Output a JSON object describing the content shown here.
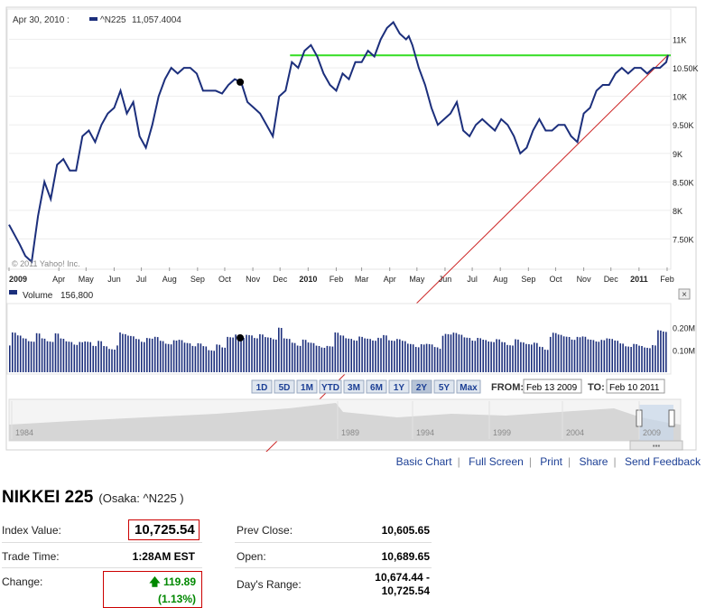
{
  "tooltip": {
    "date": "Apr 30, 2010 :",
    "symbol": "^N225",
    "value": "11,057.4004"
  },
  "watermark": "© 2011 Yahoo! Inc.",
  "volume_label": "Volume",
  "volume_value": "156,800",
  "close_icon": "close-icon",
  "range_buttons": [
    "1D",
    "5D",
    "1M",
    "YTD",
    "3M",
    "6M",
    "1Y",
    "2Y",
    "5Y",
    "Max"
  ],
  "range_selected": "2Y",
  "from_label": "FROM:",
  "from_value": "Feb 13 2009",
  "to_label": "TO:",
  "to_value": "Feb 10 2011",
  "navigator_years": [
    "1984",
    "1989",
    "1994",
    "1999",
    "2004",
    "2009"
  ],
  "links": [
    "Basic Chart",
    "Full Screen",
    "Print",
    "Share",
    "Send Feedback"
  ],
  "title": "NIKKEI 225",
  "subtitle": "(Osaka: ^N225 )",
  "stats": {
    "index_value_label": "Index Value:",
    "index_value": "10,725.54",
    "trade_time_label": "Trade Time:",
    "trade_time": "1:28AM EST",
    "change_label": "Change:",
    "change": "119.89 (1.13%)",
    "prev_close_label": "Prev Close:",
    "prev_close": "10,605.65",
    "open_label": "Open:",
    "open": "10,689.65",
    "days_range_label": "Day's Range:",
    "days_range_1": "10,674.44 -",
    "days_range_2": "10,725.54"
  },
  "colors": {
    "price": "#1c2f7c",
    "volume": "#1c2f7c",
    "support_line": "#33dd22",
    "trend_line": "#cc2222",
    "change_up": "#008800"
  },
  "chart_data": {
    "type": "line",
    "x_tick_labels": [
      "2009",
      "Apr",
      "May",
      "Jun",
      "Jul",
      "Aug",
      "Sep",
      "Oct",
      "Nov",
      "Dec",
      "2010",
      "Feb",
      "Mar",
      "Apr",
      "May",
      "Jun",
      "Jul",
      "Aug",
      "Sep",
      "Oct",
      "Nov",
      "Dec",
      "2011",
      "Feb"
    ],
    "y_tick_labels": [
      "11K",
      "10.50K",
      "10K",
      "9.50K",
      "9K",
      "8.50K",
      "8K",
      "7.50K"
    ],
    "y_ticks": [
      11000,
      10500,
      10000,
      9500,
      9000,
      8500,
      8000,
      7500
    ],
    "ylim": [
      7000,
      11500
    ],
    "series": [
      {
        "x": [
          "2009-02-13",
          "2009-02-25",
          "2009-03-03",
          "2009-03-10",
          "2009-03-17",
          "2009-03-24",
          "2009-03-31",
          "2009-04-07",
          "2009-04-14",
          "2009-04-21",
          "2009-04-28",
          "2009-05-05",
          "2009-05-12",
          "2009-05-19",
          "2009-05-26",
          "2009-06-02",
          "2009-06-09",
          "2009-06-16",
          "2009-06-23",
          "2009-06-30",
          "2009-07-07",
          "2009-07-14",
          "2009-07-21",
          "2009-07-28",
          "2009-08-04",
          "2009-08-11",
          "2009-08-18",
          "2009-08-25",
          "2009-09-01",
          "2009-09-08",
          "2009-09-15",
          "2009-09-22",
          "2009-09-29",
          "2009-10-06",
          "2009-10-13",
          "2009-10-20",
          "2009-10-27",
          "2009-11-03",
          "2009-11-10",
          "2009-11-17",
          "2009-11-24",
          "2009-12-01",
          "2009-12-08",
          "2009-12-15",
          "2009-12-22",
          "2009-12-29",
          "2010-01-05",
          "2010-01-12",
          "2010-01-19",
          "2010-01-26",
          "2010-02-02",
          "2010-02-09",
          "2010-02-16",
          "2010-02-23",
          "2010-03-02",
          "2010-03-09",
          "2010-03-16",
          "2010-03-23",
          "2010-03-30",
          "2010-04-06",
          "2010-04-13",
          "2010-04-20",
          "2010-04-27",
          "2010-04-30",
          "2010-05-04",
          "2010-05-11",
          "2010-05-18",
          "2010-05-25",
          "2010-06-01",
          "2010-06-08",
          "2010-06-15",
          "2010-06-22",
          "2010-06-29",
          "2010-07-06",
          "2010-07-13",
          "2010-07-20",
          "2010-07-27",
          "2010-08-03",
          "2010-08-10",
          "2010-08-17",
          "2010-08-24",
          "2010-08-31",
          "2010-09-07",
          "2010-09-14",
          "2010-09-21",
          "2010-09-28",
          "2010-10-05",
          "2010-10-12",
          "2010-10-19",
          "2010-10-26",
          "2010-11-02",
          "2010-11-09",
          "2010-11-16",
          "2010-11-23",
          "2010-11-30",
          "2010-12-07",
          "2010-12-14",
          "2010-12-21",
          "2010-12-28",
          "2011-01-04",
          "2011-01-11",
          "2011-01-18",
          "2011-01-25",
          "2011-02-01",
          "2011-02-08",
          "2011-02-10"
        ],
        "y": [
          7750,
          7400,
          7200,
          7100,
          7900,
          8500,
          8200,
          8800,
          8900,
          8700,
          8700,
          9300,
          9400,
          9200,
          9500,
          9700,
          9800,
          10100,
          9700,
          9900,
          9300,
          9100,
          9500,
          10000,
          10300,
          10500,
          10400,
          10500,
          10500,
          10400,
          10100,
          10100,
          10100,
          10050,
          10200,
          10300,
          10250,
          9900,
          9800,
          9700,
          9500,
          9300,
          10000,
          10100,
          10600,
          10500,
          10800,
          10900,
          10700,
          10400,
          10200,
          10100,
          10400,
          10300,
          10600,
          10600,
          10800,
          10700,
          11000,
          11200,
          11300,
          11100,
          11000,
          11057,
          10900,
          10500,
          10200,
          9800,
          9500,
          9600,
          9700,
          9900,
          9400,
          9300,
          9500,
          9600,
          9500,
          9400,
          9600,
          9500,
          9300,
          9000,
          9100,
          9400,
          9600,
          9400,
          9400,
          9500,
          9500,
          9300,
          9200,
          9700,
          9800,
          10100,
          10200,
          10200,
          10400,
          10500,
          10400,
          10500,
          10500,
          10400,
          10500,
          10500,
          10600,
          10725
        ],
        "annotation": {
          "date": "2009-10-26",
          "value": 10250
        }
      }
    ],
    "support_level": 10720,
    "volume": {
      "y_tick_labels": [
        "0.20M",
        "0.10M"
      ],
      "y_ticks": [
        200000,
        100000
      ],
      "ylim": [
        0,
        300000
      ],
      "values": [
        150000,
        140000,
        130000,
        120000,
        160000,
        140000,
        130000,
        170000,
        150000,
        140000,
        130000,
        145000,
        150000,
        135000,
        160000,
        140000,
        130000,
        150000,
        145000,
        140000,
        130000,
        120000,
        140000,
        150000,
        135000,
        125000,
        145000,
        150000,
        140000,
        130000,
        145000,
        135000,
        120000,
        150000,
        140000,
        130000,
        145000,
        135000,
        150000,
        140000,
        160000,
        150000,
        145000,
        200000,
        155000,
        140000,
        130000,
        160000,
        150000,
        140000,
        135000,
        145000,
        150000,
        140000,
        130000,
        125000,
        145000,
        140000,
        135000,
        150000,
        165000,
        145000,
        155000,
        150000,
        140000,
        130000,
        145000,
        150000,
        140000,
        135000,
        145000,
        155000,
        150000,
        140000,
        130000,
        145000,
        140000,
        135000,
        150000,
        140000,
        130000,
        160000,
        150000,
        145000,
        155000,
        140000,
        130000,
        150000,
        145000,
        140000,
        130000,
        145000,
        150000,
        140000,
        135000,
        145000,
        155000,
        150000,
        140000,
        130000,
        145000,
        140000,
        135000,
        150000,
        160000,
        156800
      ]
    }
  }
}
